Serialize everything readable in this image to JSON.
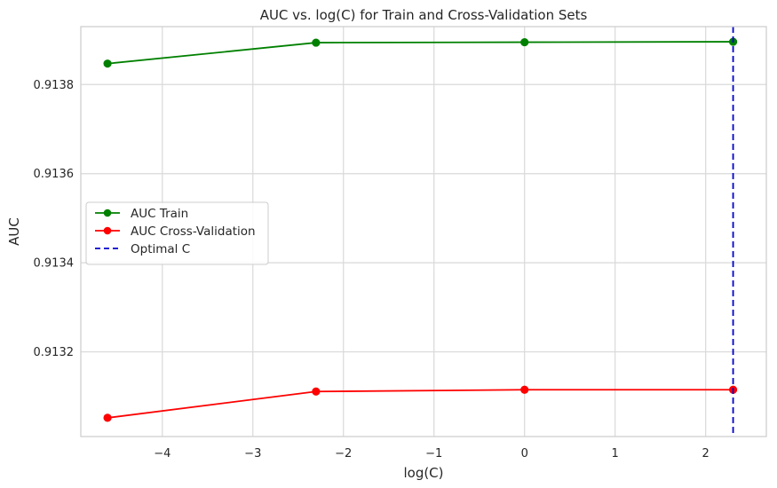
{
  "chart_data": {
    "type": "line",
    "title": "AUC vs. log(C) for Train and Cross-Validation Sets",
    "xlabel": "log(C)",
    "ylabel": "AUC",
    "xlim": [
      -4.9,
      2.67
    ],
    "ylim": [
      0.91301,
      0.91393
    ],
    "xticks": [
      -4,
      -3,
      -2,
      -1,
      0,
      1,
      2
    ],
    "xtick_labels": [
      "−4",
      "−3",
      "−2",
      "−1",
      "0",
      "1",
      "2"
    ],
    "yticks": [
      0.9132,
      0.9134,
      0.9136,
      0.9138
    ],
    "ytick_labels": [
      "0.9132",
      "0.9134",
      "0.9136",
      "0.9138"
    ],
    "grid": true,
    "legend_position": "center-left",
    "x": [
      -4.605,
      -2.303,
      0,
      2.303
    ],
    "series": [
      {
        "name": "AUC Train",
        "color": "#008000",
        "marker": "circle",
        "values": [
          0.913847,
          0.913894,
          0.913895,
          0.913896
        ]
      },
      {
        "name": "AUC Cross-Validation",
        "color": "#ff0000",
        "marker": "circle",
        "values": [
          0.913052,
          0.913111,
          0.913115,
          0.913115
        ]
      }
    ],
    "reference_lines": [
      {
        "name": "Optimal C",
        "orientation": "vertical",
        "x": 2.303,
        "color": "#0000cc",
        "style": "dashed"
      }
    ]
  }
}
